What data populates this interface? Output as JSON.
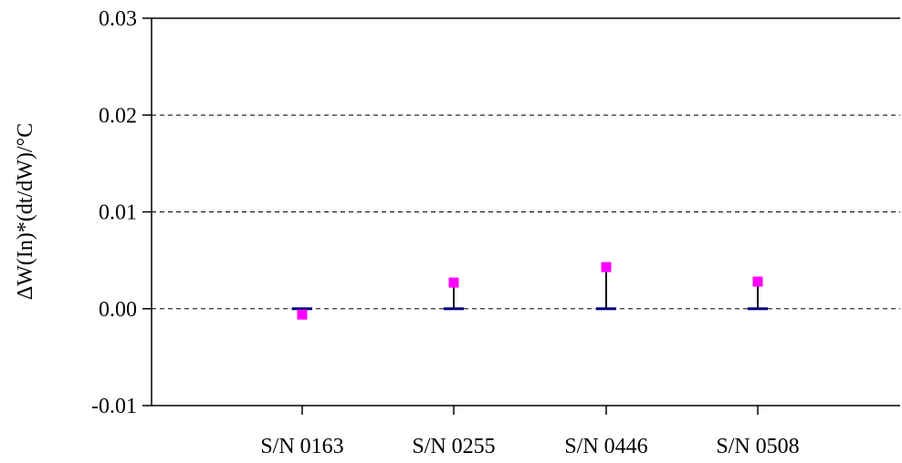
{
  "chart_data": {
    "type": "scatter",
    "title": "",
    "xlabel": "",
    "ylabel": "ΔW(In)*(dt/dW)/°C",
    "categories": [
      "S/N 0163",
      "S/N 0255",
      "S/N 0446",
      "S/N 0508"
    ],
    "ylim": [
      -0.01,
      0.03
    ],
    "yticks": [
      -0.01,
      0.0,
      0.01,
      0.02,
      0.03
    ],
    "ytick_labels": [
      "-0.01",
      "0.00",
      "0.01",
      "0.02",
      "0.03"
    ],
    "grid": "horizontal dashed",
    "legend": "none",
    "series": [
      {
        "values": [
          -0.0006,
          0.0027,
          0.0043,
          0.0028
        ],
        "marker": "square",
        "color": "#ff00ff"
      },
      {
        "values": [
          0.0,
          0.0,
          0.0,
          0.0
        ],
        "marker": "dash",
        "color": "#000080"
      }
    ],
    "error_bars": {
      "color": "#000000",
      "lower": [
        0.0,
        0.0,
        0.0,
        0.0
      ],
      "upper": [
        0.0,
        0.0027,
        0.0043,
        0.0028
      ]
    }
  }
}
